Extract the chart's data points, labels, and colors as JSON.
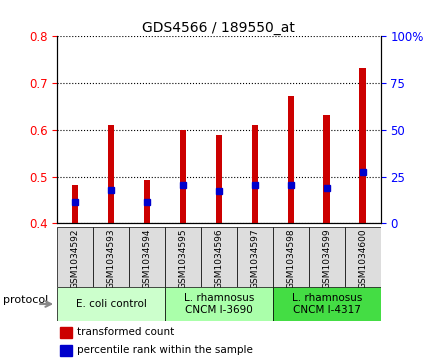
{
  "title": "GDS4566 / 189550_at",
  "samples": [
    "GSM1034592",
    "GSM1034593",
    "GSM1034594",
    "GSM1034595",
    "GSM1034596",
    "GSM1034597",
    "GSM1034598",
    "GSM1034599",
    "GSM1034600"
  ],
  "transformed_count": [
    0.482,
    0.611,
    0.492,
    0.6,
    0.588,
    0.61,
    0.673,
    0.632,
    0.733
  ],
  "percentile_rank": [
    0.445,
    0.472,
    0.445,
    0.482,
    0.47,
    0.482,
    0.482,
    0.475,
    0.51
  ],
  "bar_bottom": 0.4,
  "ylim_left": [
    0.4,
    0.8
  ],
  "ylim_right": [
    0,
    100
  ],
  "yticks_left": [
    0.4,
    0.5,
    0.6,
    0.7,
    0.8
  ],
  "yticks_right": [
    0,
    25,
    50,
    75,
    100
  ],
  "bar_color": "#cc0000",
  "percentile_color": "#0000cc",
  "bar_width": 0.18,
  "groups": [
    {
      "label": "E. coli control",
      "start": 0,
      "end": 3,
      "color": "#ccffcc"
    },
    {
      "label": "L. rhamnosus\nCNCM I-3690",
      "start": 3,
      "end": 6,
      "color": "#aaffaa"
    },
    {
      "label": "L. rhamnosus\nCNCM I-4317",
      "start": 6,
      "end": 9,
      "color": "#44dd44"
    }
  ],
  "sample_cell_color": "#dddddd",
  "legend_bar_color": "#cc0000",
  "legend_percentile_color": "#0000cc",
  "legend_label_bar": "transformed count",
  "legend_label_percentile": "percentile rank within the sample",
  "protocol_label": "protocol",
  "figsize": [
    4.4,
    3.63
  ],
  "dpi": 100
}
